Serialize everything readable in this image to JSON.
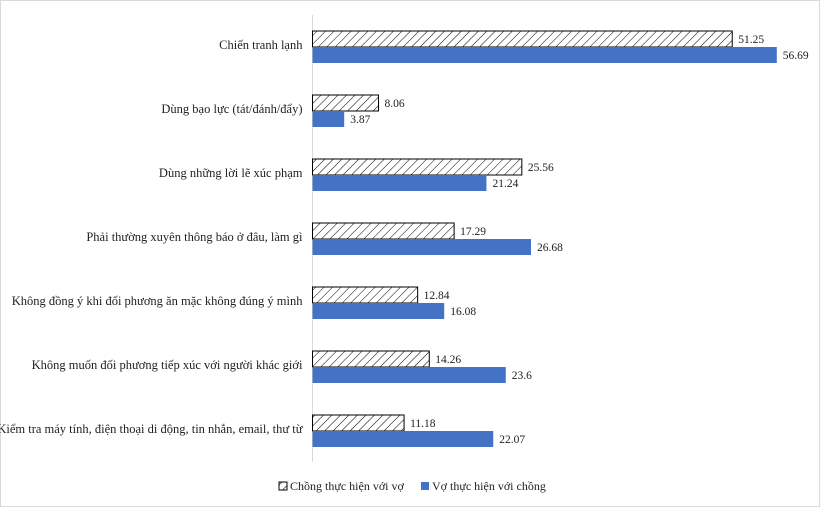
{
  "chart_data": {
    "type": "bar",
    "orientation": "horizontal",
    "categories": [
      "Chiến tranh lạnh",
      "Dùng bạo lực (tát/đánh/đẩy)",
      "Dùng những lời lẽ xúc phạm",
      "Phải thường xuyên thông báo ở đâu, làm gì",
      "Không đồng ý khi đối phương ăn mặc không đúng ý mình",
      "Không muốn đối phương tiếp xúc với người khác giới",
      "Kiểm tra máy tính, điện thoại di động, tin nhắn, email, thư từ"
    ],
    "series": [
      {
        "name": "Chồng thực hiện với vợ",
        "values": [
          51.25,
          8.06,
          25.56,
          17.29,
          12.84,
          14.26,
          11.18
        ],
        "value_labels": [
          "51.25",
          "8.06",
          "25.56",
          "17.29",
          "12.84",
          "14.26",
          "11.18"
        ],
        "fill": "hatched",
        "color": "#000000"
      },
      {
        "name": "Vợ thực hiện với chồng",
        "values": [
          56.69,
          3.87,
          21.24,
          26.68,
          16.08,
          23.6,
          22.07
        ],
        "value_labels": [
          "56.69",
          "3.87",
          "21.24",
          "26.68",
          "16.08",
          "23.6",
          "22.07"
        ],
        "fill": "solid",
        "color": "#4472c4"
      }
    ],
    "title": "",
    "xlabel": "",
    "ylabel": "",
    "xlim": [
      0,
      60
    ],
    "axis_visible": false,
    "grid": false,
    "legend_position": "bottom"
  }
}
